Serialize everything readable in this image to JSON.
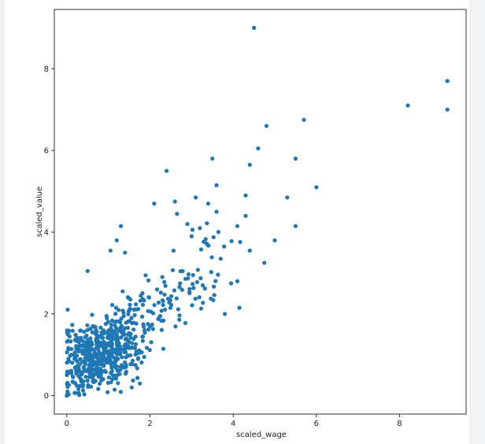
{
  "chart_data": {
    "type": "scatter",
    "title": "",
    "xlabel": "scaled_wage",
    "ylabel": "scaled_value",
    "xlim": [
      -0.3,
      9.6
    ],
    "ylim": [
      -0.45,
      9.45
    ],
    "xticks": [
      0,
      2,
      4,
      6,
      8
    ],
    "yticks": [
      0,
      2,
      4,
      6,
      8
    ],
    "grid": false,
    "legend": "none",
    "marker_color": "#1f77b4",
    "outliers": [
      {
        "x": 4.5,
        "y": 9.0
      },
      {
        "x": 9.15,
        "y": 7.7
      },
      {
        "x": 8.2,
        "y": 7.1
      },
      {
        "x": 9.15,
        "y": 7.0
      },
      {
        "x": 5.7,
        "y": 6.75
      },
      {
        "x": 4.8,
        "y": 6.6
      },
      {
        "x": 4.6,
        "y": 6.05
      },
      {
        "x": 5.5,
        "y": 5.8
      },
      {
        "x": 3.5,
        "y": 5.8
      },
      {
        "x": 4.4,
        "y": 5.65
      },
      {
        "x": 2.4,
        "y": 5.5
      },
      {
        "x": 3.6,
        "y": 5.15
      },
      {
        "x": 6.0,
        "y": 5.1
      },
      {
        "x": 4.3,
        "y": 4.9
      },
      {
        "x": 5.3,
        "y": 4.85
      },
      {
        "x": 3.1,
        "y": 4.85
      },
      {
        "x": 2.1,
        "y": 4.7
      },
      {
        "x": 2.6,
        "y": 4.75
      },
      {
        "x": 3.4,
        "y": 4.7
      },
      {
        "x": 4.1,
        "y": 4.15
      },
      {
        "x": 5.5,
        "y": 4.15
      },
      {
        "x": 1.3,
        "y": 4.15
      },
      {
        "x": 2.9,
        "y": 4.2
      },
      {
        "x": 3.6,
        "y": 4.5
      },
      {
        "x": 4.3,
        "y": 4.4
      },
      {
        "x": 1.2,
        "y": 3.8
      },
      {
        "x": 5.0,
        "y": 3.8
      },
      {
        "x": 3.2,
        "y": 4.1
      },
      {
        "x": 4.75,
        "y": 3.25
      },
      {
        "x": 4.4,
        "y": 3.55
      },
      {
        "x": 1.4,
        "y": 3.5
      },
      {
        "x": 3.8,
        "y": 2.0
      },
      {
        "x": 4.15,
        "y": 2.15
      },
      {
        "x": 3.95,
        "y": 2.75
      },
      {
        "x": 4.1,
        "y": 2.8
      },
      {
        "x": 3.7,
        "y": 3.35
      },
      {
        "x": 3.0,
        "y": 3.9
      },
      {
        "x": 2.65,
        "y": 4.45
      },
      {
        "x": 1.05,
        "y": 3.55
      },
      {
        "x": 0.5,
        "y": 3.05
      }
    ],
    "cluster_generated_points": 620
  }
}
